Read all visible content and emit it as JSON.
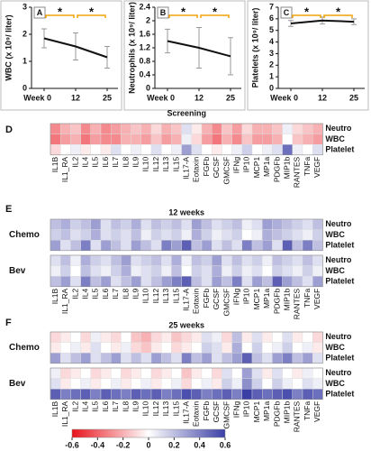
{
  "chart_data": [
    {
      "type": "line",
      "panel": "A",
      "y_label": "WBC (x 10⁹/ liter)",
      "categories": [
        "Week 0",
        "12",
        "25"
      ],
      "values": [
        1.85,
        1.55,
        1.15
      ],
      "errors": [
        0.35,
        0.5,
        0.4
      ],
      "color": "#111111",
      "ylim": [
        0,
        3
      ],
      "yticks": [
        0,
        1,
        2,
        3
      ],
      "annotations": [
        "*",
        "*"
      ],
      "annotation_color": "#f0a30a"
    },
    {
      "type": "line",
      "panel": "B",
      "y_label": "Neutrophils (x 10⁹/ liter)",
      "categories": [
        "Week 0",
        "12",
        "25"
      ],
      "values": [
        1.4,
        1.2,
        0.95
      ],
      "errors": [
        0.35,
        0.6,
        0.55
      ],
      "color": "#111111",
      "ylim": [
        0,
        2.4
      ],
      "yticks": [
        0,
        0.4,
        0.8,
        1.2,
        1.6,
        2,
        2.4
      ],
      "annotations": [
        "*",
        "*"
      ],
      "annotation_color": "#f0a30a"
    },
    {
      "type": "line",
      "panel": "C",
      "y_label": "Platelets (x 10⁹/ liter)",
      "categories": [
        "Week 0",
        "12",
        "25"
      ],
      "values": [
        5.6,
        5.85,
        5.75
      ],
      "errors": [
        0.25,
        0.3,
        0.25
      ],
      "color": "#111111",
      "ylim": [
        0,
        7
      ],
      "yticks": [
        0,
        1,
        2,
        3,
        4,
        5,
        6,
        7
      ],
      "annotations": [
        "*",
        "*"
      ],
      "annotation_color": "#f0a30a"
    },
    {
      "type": "heatmap",
      "panel": "D",
      "title": "Screening",
      "rows": [
        "Neutro",
        "WBC",
        "Platelet"
      ],
      "columns": [
        "IL1B",
        "IL1_RA",
        "IL2",
        "IL4",
        "IL5",
        "IL6",
        "IL7",
        "IL8",
        "IL9",
        "IL10",
        "IL12",
        "IL13",
        "IL15",
        "IL17-A",
        "Eotaxin",
        "FGFb",
        "GCSF",
        "GMCSF",
        "IFNg",
        "IP10",
        "MCP1",
        "MP1a",
        "PDGFb",
        "MIP1b",
        "RANTES",
        "TNFa",
        "VEGF"
      ],
      "groups": [
        {
          "values": [
            [
              -0.3,
              -0.2,
              -0.15,
              -0.3,
              -0.2,
              -0.3,
              -0.25,
              -0.2,
              -0.15,
              -0.2,
              -0.1,
              -0.2,
              -0.15,
              0.1,
              -0.05,
              -0.2,
              -0.3,
              -0.15,
              -0.25,
              -0.1,
              -0.2,
              -0.2,
              -0.15,
              0.05,
              -0.1,
              -0.15,
              -0.2
            ],
            [
              -0.35,
              -0.25,
              -0.2,
              -0.35,
              -0.25,
              -0.3,
              -0.3,
              -0.2,
              -0.2,
              -0.25,
              -0.15,
              -0.25,
              -0.2,
              0.05,
              -0.1,
              -0.25,
              -0.35,
              -0.2,
              -0.3,
              -0.15,
              -0.25,
              -0.25,
              -0.2,
              0,
              -0.15,
              -0.2,
              -0.25
            ],
            [
              -0.1,
              0,
              0.05,
              -0.05,
              0,
              -0.05,
              0.1,
              0,
              0.05,
              0,
              0.1,
              0,
              0.05,
              0.3,
              0.1,
              0,
              -0.05,
              0,
              0.05,
              0.15,
              0,
              0.05,
              0.1,
              0.45,
              0.05,
              0,
              0.1
            ]
          ]
        }
      ]
    },
    {
      "type": "heatmap",
      "panel": "E",
      "title": "12 weeks",
      "rows": [
        "Neutro",
        "WBC",
        "Platelet"
      ],
      "columns": [
        "IL1B",
        "IL1_RA",
        "IL2",
        "IL4",
        "IL5",
        "IL6",
        "IL7",
        "IL8",
        "IL9",
        "IL10",
        "IL12",
        "IL13",
        "IL15",
        "IL17-A",
        "Eotaxin",
        "FGFb",
        "GCSF",
        "GMCSF",
        "IFNg",
        "IP10",
        "MCP1",
        "MP1a",
        "PDGFb",
        "MIP1b",
        "RANTES",
        "TNFa",
        "VEGF"
      ],
      "groups": [
        {
          "name": "Chemo",
          "values": [
            [
              0.2,
              0.25,
              0.15,
              0.2,
              0.3,
              0.1,
              0.2,
              0.15,
              0.25,
              0.1,
              0.2,
              0.15,
              0.2,
              0.1,
              0.3,
              0.2,
              0.1,
              0.15,
              0.2,
              0.05,
              0.1,
              0.3,
              0.25,
              0.2,
              0.15,
              0.1,
              0.2
            ],
            [
              0.15,
              0.2,
              0.1,
              0.15,
              0.25,
              0.1,
              0.15,
              0.1,
              0.2,
              0.05,
              0.15,
              0.1,
              0.15,
              0.05,
              0.25,
              0.15,
              0.05,
              0.1,
              0.15,
              0,
              0.05,
              0.25,
              0.2,
              0.15,
              0.1,
              0.05,
              0.15
            ],
            [
              0.3,
              0.1,
              0.2,
              0.4,
              0.1,
              0.3,
              0.2,
              0.1,
              0.3,
              0.2,
              0.1,
              0.4,
              0.3,
              0.5,
              0.2,
              0.3,
              0.1,
              0.2,
              0.1,
              0.4,
              0.2,
              0.3,
              0.1,
              0.5,
              0.2,
              0.4,
              0.2
            ]
          ]
        },
        {
          "name": "Bev",
          "values": [
            [
              0.1,
              0.2,
              0.05,
              0.25,
              0.15,
              0.1,
              0.2,
              0.3,
              0.1,
              0.15,
              0.2,
              0.1,
              0.25,
              0.05,
              0.2,
              0.15,
              0.3,
              0.1,
              0.2,
              0.1,
              0.15,
              0.05,
              0.2,
              0.15,
              0.1,
              0.2,
              0.1
            ],
            [
              0.05,
              0.15,
              0,
              0.2,
              0.1,
              0.05,
              0.15,
              0.25,
              0.05,
              0.1,
              0.15,
              0.05,
              0.2,
              0,
              0.15,
              0.1,
              0.25,
              0.05,
              0.15,
              0.05,
              0.1,
              0,
              0.15,
              0.1,
              0.05,
              0.15,
              0.05
            ],
            [
              0.2,
              0.3,
              0.1,
              0.4,
              0.2,
              0.3,
              0.1,
              0.2,
              0.3,
              0.1,
              0.2,
              0.3,
              0.4,
              0.5,
              0.2,
              0.1,
              0.3,
              0.2,
              0.4,
              0.1,
              0.3,
              0.2,
              0.5,
              0.3,
              0.2,
              0.1,
              0.3
            ]
          ]
        }
      ]
    },
    {
      "type": "heatmap",
      "panel": "F",
      "title": "25 weeks",
      "rows": [
        "Neutro",
        "WBC",
        "Platelet"
      ],
      "columns": [
        "IL1B",
        "IL1_RA",
        "IL2",
        "IL4",
        "IL5",
        "IL6",
        "IL7",
        "IL8",
        "IL9",
        "IL10",
        "IL12",
        "IL13",
        "IL15",
        "IL17-A",
        "Eotaxin",
        "FGFb",
        "GCSF",
        "GMCSF",
        "IFNg",
        "IP10",
        "MCP1",
        "MP1a",
        "PDGFb",
        "MIP1b",
        "RANTES",
        "TNFa",
        "VEGF"
      ],
      "groups": [
        {
          "name": "Chemo",
          "values": [
            [
              -0.1,
              -0.05,
              0,
              -0.1,
              0.05,
              -0.05,
              -0.1,
              0,
              -0.15,
              -0.2,
              -0.1,
              -0.05,
              -0.15,
              -0.1,
              -0.05,
              0.1,
              0.05,
              -0.1,
              0.2,
              -0.05,
              0.1,
              -0.05,
              0,
              0.1,
              -0.05,
              0,
              -0.1
            ],
            [
              -0.05,
              0,
              0.05,
              -0.05,
              0.1,
              0,
              -0.05,
              0.05,
              -0.1,
              -0.15,
              -0.05,
              0,
              -0.1,
              -0.05,
              0,
              0.15,
              0.1,
              -0.05,
              0.25,
              0,
              0.15,
              0,
              0.05,
              0.15,
              0,
              0.05,
              -0.05
            ],
            [
              0.3,
              0.1,
              0.2,
              0.3,
              0.1,
              0.2,
              0.3,
              0.1,
              0.2,
              0.1,
              0.3,
              0.2,
              0.1,
              0.4,
              0.2,
              0.3,
              0.1,
              0.2,
              0.3,
              0.5,
              0.2,
              0.1,
              0.3,
              0.4,
              0.2,
              0.3,
              0.1
            ]
          ]
        },
        {
          "name": "Bev",
          "values": [
            [
              0.05,
              -0.1,
              -0.05,
              0,
              -0.1,
              -0.05,
              0,
              -0.1,
              -0.05,
              0,
              -0.1,
              -0.05,
              0,
              -0.15,
              -0.05,
              0,
              -0.1,
              0.1,
              0,
              0.3,
              0.1,
              -0.05,
              0.1,
              0,
              -0.05,
              0.05,
              0
            ],
            [
              0.1,
              -0.05,
              0,
              0.05,
              -0.05,
              0,
              0.05,
              -0.05,
              0,
              0.05,
              -0.05,
              0,
              0.05,
              -0.1,
              0,
              0.05,
              -0.05,
              0.15,
              0.05,
              0.35,
              0.15,
              0,
              0.15,
              0.05,
              0,
              0.1,
              0.05
            ],
            [
              0.5,
              0.4,
              0.45,
              0.5,
              0.4,
              0.5,
              0.45,
              0.4,
              0.5,
              0.45,
              0.5,
              0.4,
              0.45,
              0.55,
              0.5,
              0.4,
              0.45,
              0.5,
              0.4,
              0.6,
              0.5,
              0.45,
              0.5,
              0.55,
              0.4,
              0.5,
              0.45
            ]
          ]
        }
      ],
      "zlim": [
        -0.6,
        0.6
      ],
      "zticks": [
        -0.6,
        -0.4,
        -0.2,
        0,
        0.2,
        0.4,
        0.6
      ],
      "colors": [
        "#e8141c",
        "#ffffff",
        "#3b3fa5"
      ]
    }
  ]
}
